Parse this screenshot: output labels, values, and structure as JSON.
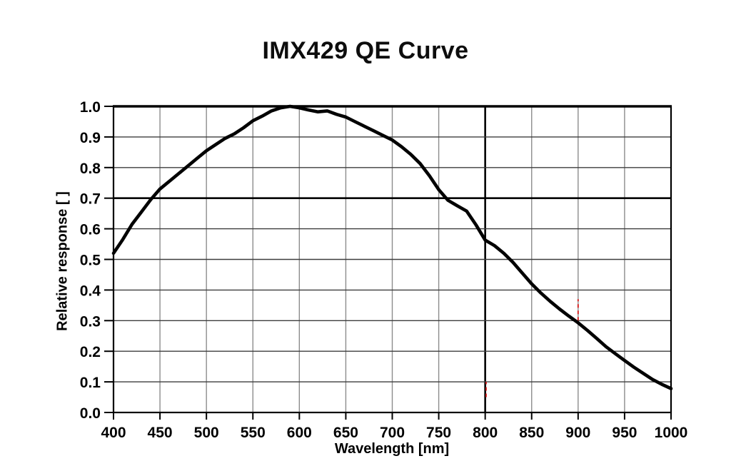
{
  "page": {
    "background": "#ffffff"
  },
  "chart_data": {
    "type": "line",
    "title": "IMX429 QE Curve",
    "xlabel": "Wavelength [nm]",
    "ylabel": "Relative response [ ]",
    "xlim": [
      400,
      1000
    ],
    "ylim": [
      0.0,
      1.0
    ],
    "x_ticks": [
      400,
      450,
      500,
      550,
      600,
      650,
      700,
      750,
      800,
      850,
      900,
      950,
      1000
    ],
    "y_ticks": [
      0.0,
      0.1,
      0.2,
      0.3,
      0.4,
      0.5,
      0.6,
      0.7,
      0.8,
      0.9,
      1.0
    ],
    "grid": "on",
    "legend": "none",
    "line_color": "#000000",
    "gridline_color_vertical": "#8c8c8c",
    "gridline_color_horizontal": "#3d3d3d",
    "emphasis": {
      "x_gridline": 800,
      "y_gridline": 0.7
    },
    "series": [
      {
        "x": [
          400,
          410,
          420,
          430,
          440,
          450,
          460,
          470,
          480,
          490,
          500,
          510,
          520,
          530,
          540,
          550,
          560,
          570,
          580,
          590,
          600,
          610,
          620,
          630,
          640,
          650,
          660,
          670,
          680,
          690,
          700,
          710,
          720,
          730,
          740,
          750,
          760,
          770,
          780,
          790,
          800,
          810,
          820,
          830,
          840,
          850,
          860,
          870,
          880,
          890,
          900,
          910,
          920,
          930,
          940,
          950,
          960,
          970,
          980,
          990,
          1000
        ],
        "y": [
          0.52,
          0.565,
          0.615,
          0.655,
          0.695,
          0.73,
          0.755,
          0.78,
          0.805,
          0.83,
          0.855,
          0.875,
          0.895,
          0.91,
          0.93,
          0.953,
          0.968,
          0.985,
          0.995,
          1.0,
          0.995,
          0.988,
          0.982,
          0.985,
          0.974,
          0.965,
          0.95,
          0.935,
          0.92,
          0.905,
          0.89,
          0.868,
          0.843,
          0.813,
          0.773,
          0.728,
          0.693,
          0.675,
          0.658,
          0.613,
          0.563,
          0.545,
          0.52,
          0.49,
          0.455,
          0.42,
          0.39,
          0.363,
          0.338,
          0.315,
          0.293,
          0.268,
          0.242,
          0.215,
          0.192,
          0.17,
          0.148,
          0.128,
          0.108,
          0.092,
          0.078
        ]
      }
    ],
    "artifacts": [
      {
        "type": "red-dash",
        "x_nm": 801,
        "y_from": 0.05,
        "y_to": 0.1,
        "color": "#d40000"
      },
      {
        "type": "red-dash",
        "x_nm": 900,
        "y_from": 0.3,
        "y_to": 0.37,
        "color": "#d40000"
      }
    ]
  }
}
